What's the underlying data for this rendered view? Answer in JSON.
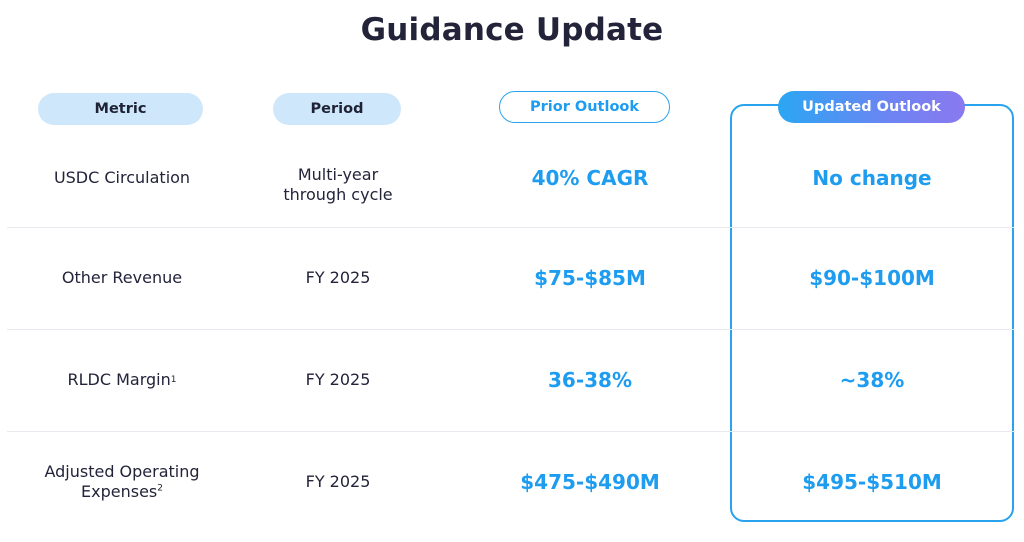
{
  "title": "Guidance Update",
  "headers": {
    "metric": "Metric",
    "period": "Period",
    "prior": "Prior Outlook",
    "updated": "Updated Outlook"
  },
  "rows": [
    {
      "metric": "USDC Circulation",
      "metric_sup": "",
      "period": "Multi-year through cycle",
      "prior": "40% CAGR",
      "updated": "No change"
    },
    {
      "metric": "Other Revenue",
      "metric_sup": "",
      "period": "FY 2025",
      "prior": "$75-$85M",
      "updated": "$90-$100M"
    },
    {
      "metric": "RLDC Margin",
      "metric_sup": "1",
      "period": "FY 2025",
      "prior": "36-38%",
      "updated": "~38%"
    },
    {
      "metric": "Adjusted Operating Expenses",
      "metric_sup": "2",
      "period": "FY 2025",
      "prior": "$475-$490M",
      "updated": "$495-$510M"
    }
  ],
  "colors": {
    "accent_blue": "#1d9cf0",
    "header_pill_bg": "#cfe7fb",
    "gradient_end": "#8a79ef"
  }
}
